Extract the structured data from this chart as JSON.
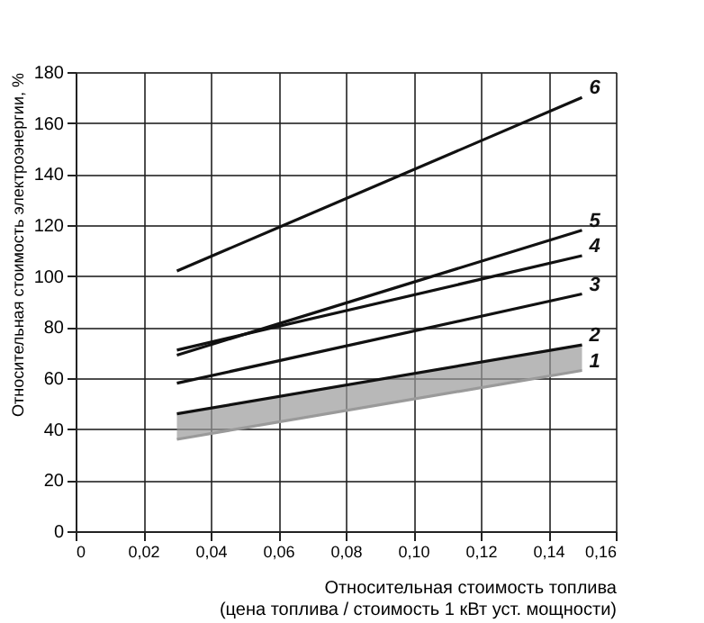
{
  "chart_data": {
    "type": "line",
    "xlabel": "Относительная стоимость топлива\n(цена топлива / стоимость 1 кВт уст. мощности)",
    "ylabel": "Относительная стоимость электроэнергии, %",
    "x": [
      0.03,
      0.15
    ],
    "series": [
      {
        "name": "1",
        "type": "line",
        "color": "#9a9a9a",
        "values": [
          36,
          63
        ],
        "lower": [
          36,
          63
        ],
        "upper": [
          46,
          73
        ]
      },
      {
        "name": "2",
        "color": "#111111",
        "values": [
          46,
          73
        ]
      },
      {
        "name": "3",
        "color": "#111111",
        "values": [
          58,
          93
        ]
      },
      {
        "name": "4",
        "color": "#111111",
        "values": [
          71,
          108
        ]
      },
      {
        "name": "5",
        "color": "#111111",
        "values": [
          69,
          118
        ]
      },
      {
        "name": "6",
        "color": "#111111",
        "values": [
          102,
          170
        ]
      }
    ],
    "xlim": [
      0,
      0.16
    ],
    "xticks": [
      0,
      {
        "value": 0.02,
        "label": "0,02"
      },
      {
        "value": 0.04,
        "label": "0,04"
      },
      {
        "value": 0.06,
        "label": "0,06"
      },
      {
        "value": 0.08,
        "label": "0,08"
      },
      {
        "value": 0.1,
        "label": "0,10"
      },
      {
        "value": 0.12,
        "label": "0,12"
      },
      {
        "value": 0.14,
        "label": "0,14"
      },
      {
        "value": 0.16,
        "label": "0,16"
      }
    ],
    "ylim": [
      0,
      180
    ],
    "yticks": [
      0,
      20,
      40,
      60,
      80,
      100,
      120,
      140,
      160,
      180
    ],
    "grid": true,
    "marker": "none",
    "line_style": "solid"
  }
}
